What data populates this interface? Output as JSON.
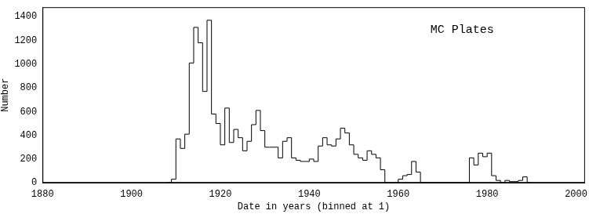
{
  "chart_data": {
    "type": "histogram",
    "x_label": "Date in years (binned at 1)",
    "y_label": "Number",
    "annotations": [
      "MC Plates"
    ],
    "color": "#000000",
    "grid": false,
    "bins": [
      1908,
      1909,
      1910,
      1911,
      1912,
      1913,
      1914,
      1915,
      1916,
      1917,
      1918,
      1919,
      1920,
      1921,
      1922,
      1923,
      1924,
      1925,
      1926,
      1927,
      1928,
      1929,
      1930,
      1931,
      1932,
      1933,
      1934,
      1935,
      1936,
      1937,
      1938,
      1939,
      1940,
      1941,
      1942,
      1943,
      1944,
      1945,
      1946,
      1947,
      1948,
      1949,
      1950,
      1951,
      1952,
      1953,
      1954,
      1955,
      1956,
      1957,
      1958,
      1959,
      1960,
      1961,
      1962,
      1963,
      1964,
      1965,
      1966,
      1967,
      1968,
      1969,
      1970,
      1971,
      1972,
      1973,
      1974,
      1975,
      1976,
      1977,
      1978,
      1979,
      1980,
      1981,
      1982,
      1983,
      1984,
      1985,
      1986,
      1987,
      1988,
      1989,
      1990
    ],
    "values": [
      0,
      30,
      370,
      290,
      410,
      1010,
      1310,
      1180,
      770,
      1370,
      580,
      500,
      320,
      630,
      340,
      450,
      380,
      270,
      350,
      490,
      610,
      440,
      300,
      300,
      300,
      210,
      350,
      380,
      210,
      190,
      180,
      180,
      200,
      180,
      310,
      380,
      320,
      310,
      370,
      460,
      420,
      320,
      240,
      210,
      190,
      270,
      240,
      210,
      110,
      0,
      0,
      0,
      30,
      60,
      70,
      180,
      90,
      0,
      0,
      0,
      0,
      0,
      0,
      0,
      0,
      0,
      0,
      0,
      210,
      150,
      250,
      220,
      250,
      60,
      20,
      0,
      20,
      10,
      10,
      20,
      50,
      0
    ],
    "xlim": [
      1880,
      2002
    ],
    "xticks": [
      1880,
      1900,
      1920,
      1940,
      1960,
      1980,
      2000
    ],
    "ylim": [
      0,
      1480
    ],
    "yticks": [
      0,
      200,
      400,
      600,
      800,
      1000,
      1200,
      1400
    ]
  }
}
